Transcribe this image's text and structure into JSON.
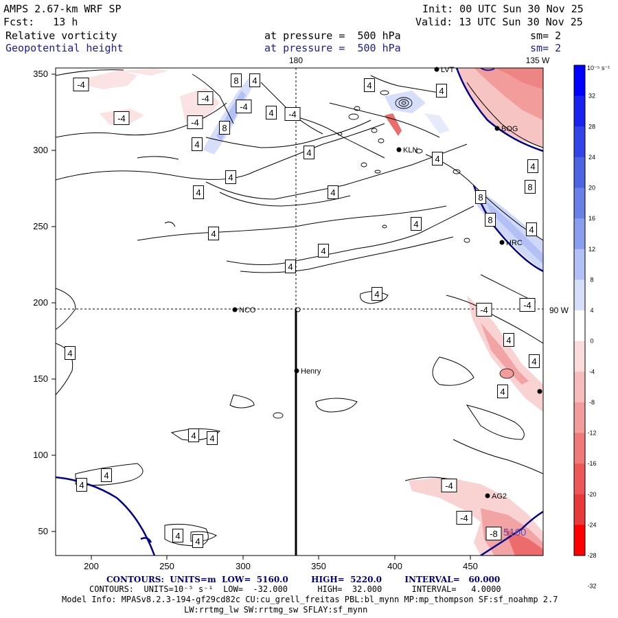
{
  "header": {
    "model": "AMPS 2.67-km WRF SP",
    "init": "Init: 00 UTC Sun 30 Nov 25",
    "forecast": "Fcst:   13 h",
    "valid": "Valid: 13 UTC Sun 30 Nov 25",
    "field1": "Relative vorticity",
    "field1_level": "at pressure =  500 hPa",
    "field1_smooth": "sm= 2",
    "field2": "Geopotential height",
    "field2_level": "at pressure =  500 hPa",
    "field2_smooth": "sm= 2"
  },
  "map": {
    "meridian_label_top": "180",
    "meridian_label_right": "135 W",
    "parallel_label": "90 W",
    "x_ticks": [
      "200",
      "250",
      "300",
      "350",
      "400",
      "450"
    ],
    "y_ticks": [
      "350",
      "300",
      "250",
      "200",
      "150",
      "100",
      "50"
    ],
    "stations": [
      "NCO",
      "Henry",
      "KLN",
      "BOG",
      "HRC",
      "AG2",
      "LVT"
    ],
    "contour_labels_pos": [
      "4",
      "8"
    ],
    "contour_labels_neg": [
      "-4",
      "-8"
    ],
    "height_label": "5160",
    "colors": {
      "coast": "#00008b",
      "negative": "#e83a3a",
      "positive": "#3f56d8"
    }
  },
  "colorbar": {
    "unit": "10⁻⁵ s⁻¹",
    "ticks": [
      "32",
      "28",
      "24",
      "20",
      "16",
      "12",
      "8",
      "4",
      "0",
      "-4",
      "-8",
      "-12",
      "-16",
      "-20",
      "-24",
      "-28",
      "-32"
    ],
    "colors": [
      "#0000ff",
      "#1a22f0",
      "#3344e6",
      "#4d63e0",
      "#6a80e6",
      "#8a9eee",
      "#b3c0f5",
      "#d6def9",
      "#ffffff",
      "#fbdcdc",
      "#f7bdbd",
      "#f39c9c",
      "#f07a7a",
      "#ec5858",
      "#e83a3a",
      "#ff0000"
    ]
  },
  "footer": {
    "contours1": "CONTOURS:  UNITS=m  LOW=  5160.0        HIGH=  5220.0        INTERVAL=   60.000",
    "contours2": "CONTOURS:  UNITS=10⁻⁵ s⁻¹  LOW=  -32.000      HIGH=  32.000      INTERVAL=   4.0000",
    "model_info": "Model Info: MPASv8.2.3-194-gf29cd82c CU:cu_grell_freitas PBL:bl_mynn MP:mp_thompson SF:sf_noahmp 2.7",
    "model_info2": "LW:rrtmg_lw SW:rrtmg_sw SFLAY:sf_mynn"
  }
}
